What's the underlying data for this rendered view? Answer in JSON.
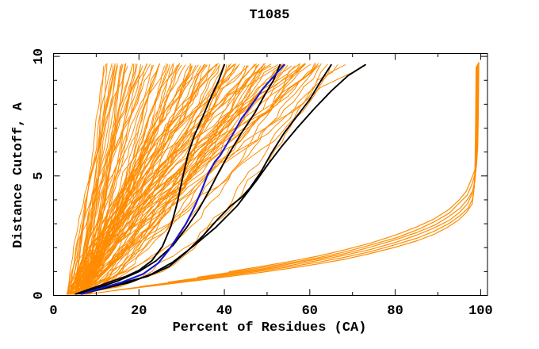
{
  "chart_data": {
    "type": "line",
    "title": "T1085",
    "xlabel": "Percent of Residues (CA)",
    "ylabel": "Distance Cutoff, A",
    "xlim": [
      0,
      101.6
    ],
    "ylim": [
      0,
      10.12
    ],
    "x_major_ticks": [
      0,
      20,
      40,
      60,
      80,
      100
    ],
    "x_minor_ticks": [
      10,
      30,
      50,
      70,
      90
    ],
    "y_major_ticks": [
      0,
      5,
      10
    ],
    "y_minor_ticks": [
      1,
      2,
      3,
      4,
      6,
      7,
      8,
      9
    ],
    "grid": false,
    "legend": "none",
    "colors": {
      "orange": "#ff8c00",
      "black": "#000000",
      "blue": "#1515d9",
      "frame": "#000000",
      "background": "#ffffff"
    },
    "series": [
      {
        "name": "server-model-ensemble",
        "color_key": "orange",
        "style": "generated-family",
        "stroke_width": 1,
        "count": 112,
        "gen": {
          "seed": 42,
          "y_bottom": 0.05,
          "y_top": 9.65,
          "bottom_x_range": [
            3,
            8.5
          ],
          "top_x_range": [
            12,
            64.5
          ],
          "top_power": 1.1,
          "straggler_tops": [
            66.5,
            68.3,
            72.8
          ],
          "exponent_range": [
            0.55,
            1.5
          ],
          "segments": 30
        }
      },
      {
        "name": "high-accuracy-model-bundle",
        "color_key": "orange",
        "style": "bundle",
        "stroke_width": 1.2,
        "count": 6,
        "seed": 7,
        "y_scale_start": 0.88,
        "y_scale_step": 0.045,
        "x_tail_step": 0.13,
        "knee_y": 4.9,
        "base_top_y": 9.75,
        "base_points": [
          [
            8,
            0.05
          ],
          [
            14,
            0.22
          ],
          [
            20,
            0.38
          ],
          [
            27,
            0.55
          ],
          [
            34,
            0.72
          ],
          [
            41,
            0.9
          ],
          [
            48,
            1.08
          ],
          [
            55,
            1.28
          ],
          [
            62,
            1.5
          ],
          [
            68,
            1.72
          ],
          [
            74,
            1.98
          ],
          [
            80,
            2.28
          ],
          [
            85,
            2.6
          ],
          [
            89,
            2.9
          ],
          [
            92.5,
            3.25
          ],
          [
            95,
            3.6
          ],
          [
            96.8,
            3.95
          ],
          [
            98,
            4.35
          ],
          [
            98.7,
            4.9
          ],
          [
            99,
            5.8
          ],
          [
            99.1,
            7.0
          ],
          [
            99.2,
            8.5
          ],
          [
            99.25,
            9.75
          ]
        ]
      },
      {
        "name": "reference-model-black-1",
        "color_key": "black",
        "style": "points",
        "stroke_width": 1.9,
        "points": [
          [
            5.5,
            0.08
          ],
          [
            9,
            0.3
          ],
          [
            13,
            0.55
          ],
          [
            17,
            0.8
          ],
          [
            20,
            1.05
          ],
          [
            23,
            1.45
          ],
          [
            25.5,
            2.05
          ],
          [
            27.5,
            2.9
          ],
          [
            29,
            3.9
          ],
          [
            30.2,
            4.9
          ],
          [
            31.5,
            5.9
          ],
          [
            33,
            6.7
          ],
          [
            35,
            7.5
          ],
          [
            37,
            8.35
          ],
          [
            38.7,
            9.0
          ],
          [
            40,
            9.65
          ]
        ]
      },
      {
        "name": "reference-model-black-2",
        "color_key": "black",
        "style": "points",
        "stroke_width": 1.9,
        "points": [
          [
            6,
            0.08
          ],
          [
            10,
            0.3
          ],
          [
            15,
            0.6
          ],
          [
            20,
            1.0
          ],
          [
            24,
            1.45
          ],
          [
            28,
            2.1
          ],
          [
            31,
            2.8
          ],
          [
            34,
            3.6
          ],
          [
            36.5,
            4.4
          ],
          [
            38.8,
            5.2
          ],
          [
            41,
            5.9
          ],
          [
            44,
            6.8
          ],
          [
            47,
            7.6
          ],
          [
            49.5,
            8.4
          ],
          [
            51.5,
            9.0
          ],
          [
            53,
            9.65
          ]
        ]
      },
      {
        "name": "reference-model-black-3",
        "color_key": "black",
        "style": "points",
        "stroke_width": 1.9,
        "points": [
          [
            5.2,
            0.06
          ],
          [
            10,
            0.28
          ],
          [
            16,
            0.52
          ],
          [
            22,
            0.8
          ],
          [
            27,
            1.2
          ],
          [
            31,
            1.8
          ],
          [
            35,
            2.5
          ],
          [
            38.5,
            3.2
          ],
          [
            41.5,
            3.75
          ],
          [
            44,
            4.1
          ],
          [
            46,
            4.5
          ],
          [
            48.5,
            5.15
          ],
          [
            51,
            5.95
          ],
          [
            54,
            6.8
          ],
          [
            57,
            7.5
          ],
          [
            60,
            8.2
          ],
          [
            62.5,
            8.95
          ],
          [
            65,
            9.65
          ]
        ]
      },
      {
        "name": "reference-model-black-4",
        "color_key": "black",
        "style": "points",
        "stroke_width": 1.9,
        "points": [
          [
            7,
            0.08
          ],
          [
            12,
            0.3
          ],
          [
            18,
            0.55
          ],
          [
            23,
            0.9
          ],
          [
            28,
            1.4
          ],
          [
            33,
            2.1
          ],
          [
            38,
            2.85
          ],
          [
            43,
            3.75
          ],
          [
            47.5,
            4.8
          ],
          [
            50.5,
            5.55
          ],
          [
            53.5,
            6.25
          ],
          [
            57,
            7.0
          ],
          [
            61,
            7.8
          ],
          [
            65,
            8.55
          ],
          [
            69,
            9.2
          ],
          [
            73,
            9.65
          ]
        ]
      },
      {
        "name": "highlighted-model-blue",
        "color_key": "blue",
        "style": "points",
        "stroke_width": 2.1,
        "points": [
          [
            6.5,
            0.06
          ],
          [
            11,
            0.3
          ],
          [
            16,
            0.55
          ],
          [
            21,
            0.9
          ],
          [
            24.5,
            1.35
          ],
          [
            27,
            1.9
          ],
          [
            29,
            2.45
          ],
          [
            31,
            3.0
          ],
          [
            33,
            3.7
          ],
          [
            34.8,
            4.45
          ],
          [
            36.2,
            5.1
          ],
          [
            37.8,
            5.6
          ],
          [
            39,
            5.85
          ],
          [
            40.5,
            6.3
          ],
          [
            42.5,
            6.9
          ],
          [
            44,
            7.4
          ],
          [
            45.5,
            7.75
          ],
          [
            47.5,
            8.25
          ],
          [
            49,
            8.65
          ],
          [
            50.5,
            8.95
          ],
          [
            52,
            9.25
          ],
          [
            54,
            9.65
          ]
        ]
      }
    ]
  }
}
